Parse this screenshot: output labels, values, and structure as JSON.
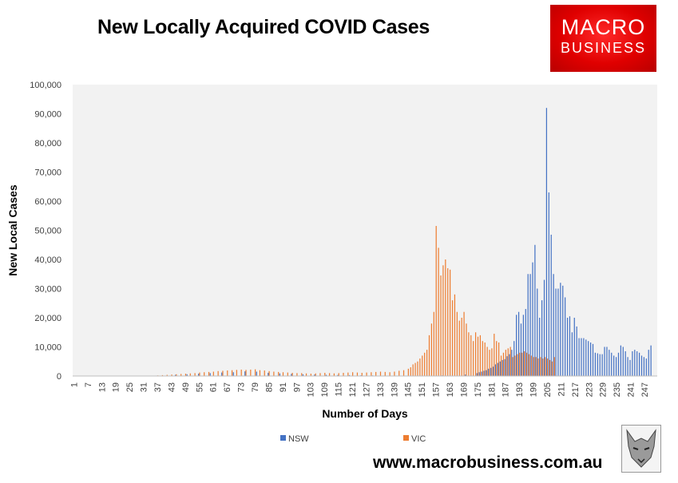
{
  "header": {
    "title": "New Locally Acquired COVID Cases"
  },
  "logo": {
    "line1": "MACRO",
    "line2": "BUSINESS"
  },
  "footer": {
    "website": "www.macrobusiness.com.au",
    "badge_icon": "wolf-icon"
  },
  "chart_data": {
    "type": "bar",
    "title": "New Locally Acquired COVID Cases",
    "xlabel": "Number of Days",
    "ylabel": "New Local Cases",
    "ylim": [
      0,
      100000
    ],
    "yticks": [
      0,
      10000,
      20000,
      30000,
      40000,
      50000,
      60000,
      70000,
      80000,
      90000,
      100000
    ],
    "ytick_labels": [
      "0",
      "10,000",
      "20,000",
      "30,000",
      "40,000",
      "50,000",
      "60,000",
      "70,000",
      "80,000",
      "90,000",
      "100,000"
    ],
    "xticks": [
      1,
      7,
      13,
      19,
      25,
      31,
      37,
      43,
      49,
      55,
      61,
      67,
      73,
      79,
      85,
      91,
      97,
      103,
      109,
      115,
      121,
      127,
      133,
      139,
      145,
      151,
      157,
      163,
      169,
      175,
      181,
      187,
      193,
      199,
      205,
      211,
      217,
      223,
      229,
      235,
      241,
      247
    ],
    "x_range": [
      1,
      252
    ],
    "grid": false,
    "legend": "bottom",
    "colors": {
      "NSW": "#4472c4",
      "VIC": "#ed7d31",
      "plot_bg": "#f2f2f2"
    },
    "series": [
      {
        "name": "NSW",
        "points": [
          [
            37,
            150
          ],
          [
            45,
            400
          ],
          [
            50,
            600
          ],
          [
            55,
            800
          ],
          [
            60,
            1000
          ],
          [
            65,
            1200
          ],
          [
            70,
            1300
          ],
          [
            75,
            1600
          ],
          [
            80,
            1500
          ],
          [
            85,
            1100
          ],
          [
            90,
            900
          ],
          [
            95,
            700
          ],
          [
            100,
            600
          ],
          [
            105,
            500
          ],
          [
            110,
            400
          ],
          [
            115,
            350
          ],
          [
            120,
            300
          ],
          [
            125,
            250
          ],
          [
            130,
            200
          ],
          [
            135,
            150
          ],
          [
            140,
            100
          ],
          [
            150,
            100
          ],
          [
            160,
            200
          ],
          [
            170,
            500
          ],
          [
            175,
            1000
          ],
          [
            176,
            1300
          ],
          [
            177,
            1500
          ],
          [
            178,
            1800
          ],
          [
            179,
            2000
          ],
          [
            180,
            2500
          ],
          [
            181,
            2800
          ],
          [
            182,
            3200
          ],
          [
            183,
            4000
          ],
          [
            184,
            4500
          ],
          [
            185,
            5000
          ],
          [
            186,
            5500
          ],
          [
            187,
            5800
          ],
          [
            188,
            6800
          ],
          [
            189,
            7500
          ],
          [
            190,
            9000
          ],
          [
            191,
            12000
          ],
          [
            192,
            21000
          ],
          [
            193,
            22000
          ],
          [
            194,
            18000
          ],
          [
            195,
            21000
          ],
          [
            196,
            23000
          ],
          [
            197,
            35000
          ],
          [
            198,
            35000
          ],
          [
            199,
            39000
          ],
          [
            200,
            45000
          ],
          [
            201,
            30000
          ],
          [
            202,
            20000
          ],
          [
            203,
            26000
          ],
          [
            204,
            33000
          ],
          [
            205,
            92000
          ],
          [
            206,
            63000
          ],
          [
            207,
            48500
          ],
          [
            208,
            35000
          ],
          [
            209,
            30000
          ],
          [
            210,
            30000
          ],
          [
            211,
            32000
          ],
          [
            212,
            31000
          ],
          [
            213,
            27000
          ],
          [
            214,
            20000
          ],
          [
            215,
            20500
          ],
          [
            216,
            15000
          ],
          [
            217,
            20000
          ],
          [
            218,
            17000
          ],
          [
            219,
            13000
          ],
          [
            220,
            13000
          ],
          [
            221,
            13000
          ],
          [
            222,
            12500
          ],
          [
            223,
            12000
          ],
          [
            224,
            11500
          ],
          [
            225,
            11000
          ],
          [
            226,
            8000
          ],
          [
            227,
            7800
          ],
          [
            228,
            7500
          ],
          [
            229,
            7500
          ],
          [
            230,
            10000
          ],
          [
            231,
            10000
          ],
          [
            232,
            9000
          ],
          [
            233,
            8000
          ],
          [
            234,
            7000
          ],
          [
            235,
            6500
          ],
          [
            236,
            8000
          ],
          [
            237,
            10500
          ],
          [
            238,
            10000
          ],
          [
            239,
            8500
          ],
          [
            240,
            6500
          ],
          [
            241,
            5500
          ],
          [
            242,
            8500
          ],
          [
            243,
            9000
          ],
          [
            244,
            8500
          ],
          [
            245,
            8000
          ],
          [
            246,
            7000
          ],
          [
            247,
            6500
          ],
          [
            248,
            6000
          ],
          [
            249,
            9000
          ],
          [
            250,
            10500
          ]
        ]
      },
      {
        "name": "VIC",
        "points": [
          [
            37,
            200
          ],
          [
            39,
            300
          ],
          [
            41,
            400
          ],
          [
            43,
            500
          ],
          [
            45,
            600
          ],
          [
            47,
            700
          ],
          [
            49,
            800
          ],
          [
            51,
            900
          ],
          [
            53,
            1000
          ],
          [
            55,
            1200
          ],
          [
            57,
            1300
          ],
          [
            59,
            1400
          ],
          [
            61,
            1500
          ],
          [
            63,
            1700
          ],
          [
            65,
            1800
          ],
          [
            67,
            1900
          ],
          [
            69,
            2000
          ],
          [
            71,
            2100
          ],
          [
            73,
            2200
          ],
          [
            75,
            2100
          ],
          [
            77,
            2200
          ],
          [
            79,
            2300
          ],
          [
            81,
            2000
          ],
          [
            83,
            1900
          ],
          [
            85,
            1700
          ],
          [
            87,
            1500
          ],
          [
            89,
            1400
          ],
          [
            91,
            1300
          ],
          [
            93,
            1200
          ],
          [
            95,
            1100
          ],
          [
            97,
            1000
          ],
          [
            99,
            1000
          ],
          [
            101,
            900
          ],
          [
            103,
            800
          ],
          [
            105,
            900
          ],
          [
            107,
            1000
          ],
          [
            109,
            1100
          ],
          [
            111,
            1000
          ],
          [
            113,
            900
          ],
          [
            115,
            1000
          ],
          [
            117,
            1100
          ],
          [
            119,
            1200
          ],
          [
            121,
            1300
          ],
          [
            123,
            1200
          ],
          [
            125,
            1100
          ],
          [
            127,
            1200
          ],
          [
            129,
            1300
          ],
          [
            131,
            1400
          ],
          [
            133,
            1500
          ],
          [
            135,
            1400
          ],
          [
            137,
            1300
          ],
          [
            139,
            1500
          ],
          [
            141,
            1800
          ],
          [
            143,
            2000
          ],
          [
            145,
            2500
          ],
          [
            146,
            3000
          ],
          [
            147,
            4000
          ],
          [
            148,
            4500
          ],
          [
            149,
            5000
          ],
          [
            150,
            6000
          ],
          [
            151,
            7000
          ],
          [
            152,
            8000
          ],
          [
            153,
            9000
          ],
          [
            154,
            14000
          ],
          [
            155,
            18000
          ],
          [
            156,
            22000
          ],
          [
            157,
            51500
          ],
          [
            158,
            44000
          ],
          [
            159,
            34500
          ],
          [
            160,
            38000
          ],
          [
            161,
            40000
          ],
          [
            162,
            37000
          ],
          [
            163,
            36500
          ],
          [
            164,
            26000
          ],
          [
            165,
            28000
          ],
          [
            166,
            22000
          ],
          [
            167,
            19000
          ],
          [
            168,
            20000
          ],
          [
            169,
            22000
          ],
          [
            170,
            18000
          ],
          [
            171,
            15000
          ],
          [
            172,
            14000
          ],
          [
            173,
            12000
          ],
          [
            174,
            15000
          ],
          [
            175,
            13500
          ],
          [
            176,
            14000
          ],
          [
            177,
            12000
          ],
          [
            178,
            11500
          ],
          [
            179,
            10000
          ],
          [
            180,
            9000
          ],
          [
            181,
            9500
          ],
          [
            182,
            14500
          ],
          [
            183,
            12000
          ],
          [
            184,
            11500
          ],
          [
            185,
            7000
          ],
          [
            186,
            8000
          ],
          [
            187,
            9000
          ],
          [
            188,
            9500
          ],
          [
            189,
            10000
          ],
          [
            190,
            6500
          ],
          [
            191,
            7000
          ],
          [
            192,
            7500
          ],
          [
            193,
            8000
          ],
          [
            194,
            8000
          ],
          [
            195,
            8500
          ],
          [
            196,
            8000
          ],
          [
            197,
            7500
          ],
          [
            198,
            7000
          ],
          [
            199,
            6500
          ],
          [
            200,
            6500
          ],
          [
            201,
            6000
          ],
          [
            202,
            6500
          ],
          [
            203,
            6000
          ],
          [
            204,
            6500
          ],
          [
            205,
            6000
          ],
          [
            206,
            5500
          ],
          [
            207,
            5000
          ],
          [
            208,
            6500
          ]
        ]
      }
    ]
  }
}
